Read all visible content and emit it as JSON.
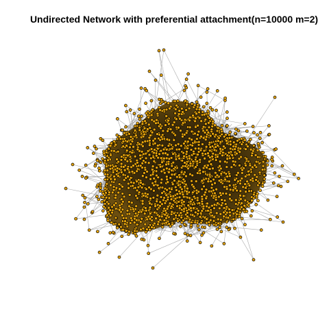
{
  "title": "Undirected Network with preferential attachment(n=10000 m=2)",
  "network": {
    "model": "preferential attachment",
    "directed": false,
    "n": 10000,
    "m": 2
  },
  "colors": {
    "node_fill": "#e8a50c",
    "node_stroke": "#000000",
    "edge": "#a9a9a9",
    "background": "#ffffff"
  }
}
